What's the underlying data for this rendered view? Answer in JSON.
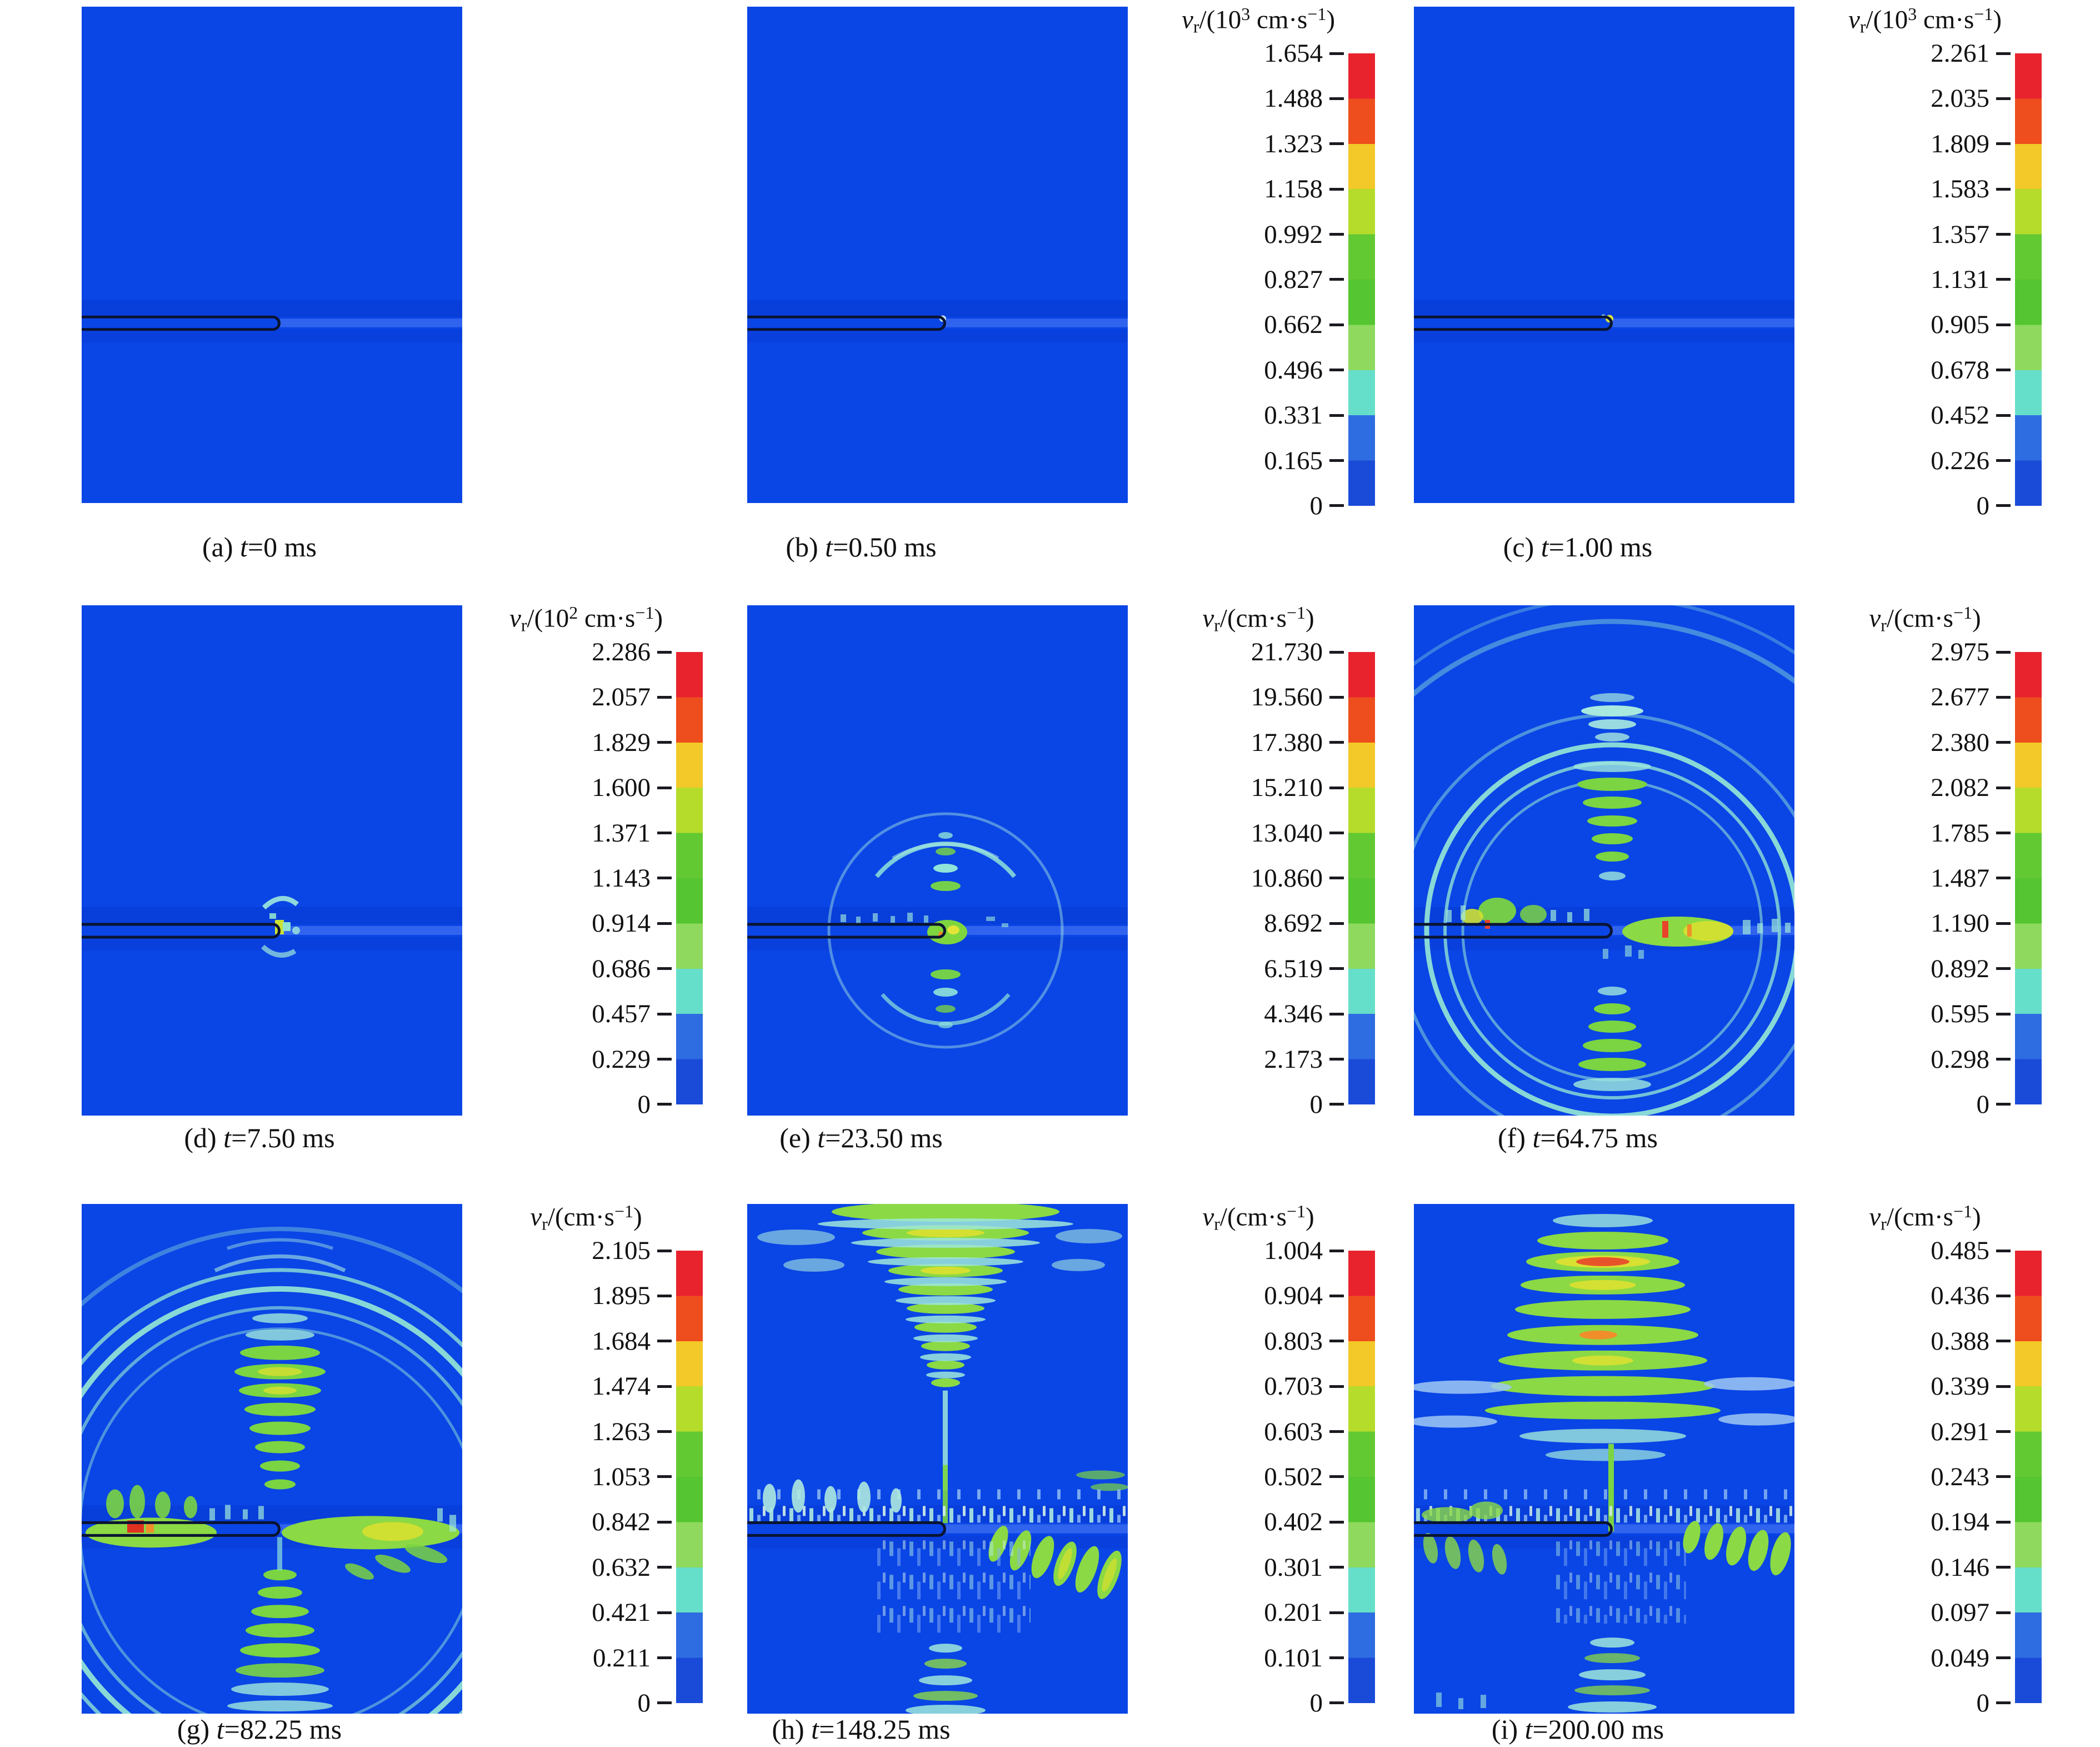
{
  "figure": {
    "background": "#ffffff",
    "field_color": "#0a45e6",
    "borehole_color": "#0a1430",
    "colorbar_band_colors": [
      "#e8232e",
      "#ee4e1d",
      "#f2c928",
      "#b5dc2b",
      "#63c933",
      "#55c531",
      "#8ed95e",
      "#66dfca",
      "#2e6ce2",
      "#1a4bd8"
    ],
    "panels": [
      {
        "id": "a",
        "caption_parts": [
          {
            "t": "(a) ",
            "s": "n"
          },
          {
            "t": "t",
            "s": "i"
          },
          {
            "t": "=0 ms",
            "s": "n"
          }
        ]
      },
      {
        "id": "b",
        "caption_parts": [
          {
            "t": "(b) ",
            "s": "n"
          },
          {
            "t": "t",
            "s": "i"
          },
          {
            "t": "=0.50 ms",
            "s": "n"
          }
        ],
        "colorbar": {
          "title_parts": [
            {
              "t": "v",
              "s": "i"
            },
            {
              "t": "r",
              "s": "sub"
            },
            {
              "t": "/(10",
              "s": "n"
            },
            {
              "t": "3",
              "s": "sup"
            },
            {
              "t": " cm·s",
              "s": "n"
            },
            {
              "t": "−1",
              "s": "sup"
            },
            {
              "t": ")",
              "s": "n"
            }
          ],
          "ticks": [
            "1.654",
            "1.488",
            "1.323",
            "1.158",
            "0.992",
            "0.827",
            "0.662",
            "0.496",
            "0.331",
            "0.165",
            "0"
          ]
        }
      },
      {
        "id": "c",
        "caption_parts": [
          {
            "t": "(c) ",
            "s": "n"
          },
          {
            "t": "t",
            "s": "i"
          },
          {
            "t": "=1.00 ms",
            "s": "n"
          }
        ],
        "colorbar": {
          "title_parts": [
            {
              "t": "v",
              "s": "i"
            },
            {
              "t": "r",
              "s": "sub"
            },
            {
              "t": "/(10",
              "s": "n"
            },
            {
              "t": "3",
              "s": "sup"
            },
            {
              "t": " cm·s",
              "s": "n"
            },
            {
              "t": "−1",
              "s": "sup"
            },
            {
              "t": ")",
              "s": "n"
            }
          ],
          "ticks": [
            "2.261",
            "2.035",
            "1.809",
            "1.583",
            "1.357",
            "1.131",
            "0.905",
            "0.678",
            "0.452",
            "0.226",
            "0"
          ]
        }
      },
      {
        "id": "d",
        "caption_parts": [
          {
            "t": "(d) ",
            "s": "n"
          },
          {
            "t": "t",
            "s": "i"
          },
          {
            "t": "=7.50 ms",
            "s": "n"
          }
        ],
        "colorbar": {
          "title_parts": [
            {
              "t": "v",
              "s": "i"
            },
            {
              "t": "r",
              "s": "sub"
            },
            {
              "t": "/(10",
              "s": "n"
            },
            {
              "t": "2",
              "s": "sup"
            },
            {
              "t": " cm·s",
              "s": "n"
            },
            {
              "t": "−1",
              "s": "sup"
            },
            {
              "t": ")",
              "s": "n"
            }
          ],
          "ticks": [
            "2.286",
            "2.057",
            "1.829",
            "1.600",
            "1.371",
            "1.143",
            "0.914",
            "0.686",
            "0.457",
            "0.229",
            "0"
          ]
        }
      },
      {
        "id": "e",
        "caption_parts": [
          {
            "t": "(e) ",
            "s": "n"
          },
          {
            "t": "t",
            "s": "i"
          },
          {
            "t": "=23.50 ms",
            "s": "n"
          }
        ],
        "colorbar": {
          "title_parts": [
            {
              "t": "v",
              "s": "i"
            },
            {
              "t": "r",
              "s": "sub"
            },
            {
              "t": "/(cm·s",
              "s": "n"
            },
            {
              "t": "−1",
              "s": "sup"
            },
            {
              "t": ")",
              "s": "n"
            }
          ],
          "ticks": [
            "21.730",
            "19.560",
            "17.380",
            "15.210",
            "13.040",
            "10.860",
            "8.692",
            "6.519",
            "4.346",
            "2.173",
            "0"
          ]
        }
      },
      {
        "id": "f",
        "caption_parts": [
          {
            "t": "(f) ",
            "s": "n"
          },
          {
            "t": "t",
            "s": "i"
          },
          {
            "t": "=64.75 ms",
            "s": "n"
          }
        ],
        "colorbar": {
          "title_parts": [
            {
              "t": "v",
              "s": "i"
            },
            {
              "t": "r",
              "s": "sub"
            },
            {
              "t": "/(cm·s",
              "s": "n"
            },
            {
              "t": "−1",
              "s": "sup"
            },
            {
              "t": ")",
              "s": "n"
            }
          ],
          "ticks": [
            "2.975",
            "2.677",
            "2.380",
            "2.082",
            "1.785",
            "1.487",
            "1.190",
            "0.892",
            "0.595",
            "0.298",
            "0"
          ]
        }
      },
      {
        "id": "g",
        "caption_parts": [
          {
            "t": "(g) ",
            "s": "n"
          },
          {
            "t": "t",
            "s": "i"
          },
          {
            "t": "=82.25 ms",
            "s": "n"
          }
        ],
        "colorbar": {
          "title_parts": [
            {
              "t": "v",
              "s": "i"
            },
            {
              "t": "r",
              "s": "sub"
            },
            {
              "t": "/(cm·s",
              "s": "n"
            },
            {
              "t": "−1",
              "s": "sup"
            },
            {
              "t": ")",
              "s": "n"
            }
          ],
          "ticks": [
            "2.105",
            "1.895",
            "1.684",
            "1.474",
            "1.263",
            "1.053",
            "0.842",
            "0.632",
            "0.421",
            "0.211",
            "0"
          ]
        }
      },
      {
        "id": "h",
        "caption_parts": [
          {
            "t": "(h) ",
            "s": "n"
          },
          {
            "t": "t",
            "s": "i"
          },
          {
            "t": "=148.25 ms",
            "s": "n"
          }
        ],
        "colorbar": {
          "title_parts": [
            {
              "t": "v",
              "s": "i"
            },
            {
              "t": "r",
              "s": "sub"
            },
            {
              "t": "/(cm·s",
              "s": "n"
            },
            {
              "t": "−1",
              "s": "sup"
            },
            {
              "t": ")",
              "s": "n"
            }
          ],
          "ticks": [
            "1.004",
            "0.904",
            "0.803",
            "0.703",
            "0.603",
            "0.502",
            "0.402",
            "0.301",
            "0.201",
            "0.101",
            "0"
          ]
        }
      },
      {
        "id": "i",
        "caption_parts": [
          {
            "t": "(i) ",
            "s": "n"
          },
          {
            "t": "t",
            "s": "i"
          },
          {
            "t": "=200.00 ms",
            "s": "n"
          }
        ],
        "colorbar": {
          "title_parts": [
            {
              "t": "v",
              "s": "i"
            },
            {
              "t": "r",
              "s": "sub"
            },
            {
              "t": "/(cm·s",
              "s": "n"
            },
            {
              "t": "−1",
              "s": "sup"
            },
            {
              "t": ")",
              "s": "n"
            }
          ],
          "ticks": [
            "0.485",
            "0.436",
            "0.388",
            "0.339",
            "0.291",
            "0.243",
            "0.194",
            "0.146",
            "0.097",
            "0.049",
            "0"
          ]
        }
      }
    ]
  },
  "chart_data": [
    {
      "type": "heatmap",
      "panel": "(a)",
      "time_label": "t=0 ms",
      "time_ms": 0,
      "variable": "vr (radial velocity)",
      "unit": "10^3 cm·s^-1",
      "colorbar_shown": false,
      "colorbar_ticks": [
        1.654,
        1.488,
        1.323,
        1.158,
        0.992,
        0.827,
        0.662,
        0.496,
        0.331,
        0.165,
        0
      ],
      "pattern": "uniform near-zero blue field; horizontal borehole from left edge to panel center"
    },
    {
      "type": "heatmap",
      "panel": "(b)",
      "time_label": "t=0.50 ms",
      "time_ms": 0.5,
      "variable": "vr (radial velocity)",
      "unit": "10^3 cm·s^-1",
      "colorbar_shown": true,
      "colorbar_ticks": [
        1.654,
        1.488,
        1.323,
        1.158,
        0.992,
        0.827,
        0.662,
        0.496,
        0.331,
        0.165,
        0
      ],
      "pattern": "tiny bright spot at borehole tip"
    },
    {
      "type": "heatmap",
      "panel": "(c)",
      "time_label": "t=1.00 ms",
      "time_ms": 1.0,
      "variable": "vr (radial velocity)",
      "unit": "10^3 cm·s^-1",
      "colorbar_shown": true,
      "colorbar_ticks": [
        2.261,
        2.035,
        1.809,
        1.583,
        1.357,
        1.131,
        0.905,
        0.678,
        0.452,
        0.226,
        0
      ],
      "pattern": "small yellow-green spot at borehole tip"
    },
    {
      "type": "heatmap",
      "panel": "(d)",
      "time_label": "t=7.50 ms",
      "time_ms": 7.5,
      "variable": "vr (radial velocity)",
      "unit": "10^2 cm·s^-1",
      "colorbar_shown": true,
      "colorbar_ticks": [
        2.286,
        2.057,
        1.829,
        1.6,
        1.371,
        1.143,
        0.914,
        0.686,
        0.457,
        0.229,
        0
      ],
      "pattern": "small cyan/green wavefront cluster around borehole tip"
    },
    {
      "type": "heatmap",
      "panel": "(e)",
      "time_label": "t=23.50 ms",
      "time_ms": 23.5,
      "variable": "vr (radial velocity)",
      "unit": "cm·s^-1",
      "colorbar_shown": true,
      "colorbar_ticks": [
        21.73,
        19.56,
        17.38,
        15.21,
        13.04,
        10.86,
        8.692,
        6.519,
        4.346,
        2.173,
        0
      ],
      "pattern": "cross-shaped ripple system with cyan arcs centered on borehole tip"
    },
    {
      "type": "heatmap",
      "panel": "(f)",
      "time_label": "t=64.75 ms",
      "time_ms": 64.75,
      "variable": "vr (radial velocity)",
      "unit": "cm·s^-1",
      "colorbar_shown": true,
      "colorbar_ticks": [
        2.975,
        2.677,
        2.38,
        2.082,
        1.785,
        1.487,
        1.19,
        0.892,
        0.595,
        0.298,
        0
      ],
      "pattern": "large circular wavefronts, vertical green lobe stacks, strong green/red band right of tip"
    },
    {
      "type": "heatmap",
      "panel": "(g)",
      "time_label": "t=82.25 ms",
      "time_ms": 82.25,
      "variable": "vr (radial velocity)",
      "unit": "cm·s^-1",
      "colorbar_shown": true,
      "colorbar_ticks": [
        2.105,
        1.895,
        1.684,
        1.474,
        1.263,
        1.053,
        0.842,
        0.632,
        0.421,
        0.211,
        0
      ],
      "pattern": "expanded ring nearly filling panel, green cross lobes, red spot on borehole at left, green band to right edge"
    },
    {
      "type": "heatmap",
      "panel": "(h)",
      "time_label": "t=148.25 ms",
      "time_ms": 148.25,
      "variable": "vr (radial velocity)",
      "unit": "cm·s^-1",
      "colorbar_shown": true,
      "colorbar_ticks": [
        1.004,
        0.904,
        0.803,
        0.703,
        0.603,
        0.502,
        0.402,
        0.301,
        0.201,
        0.101,
        0
      ],
      "pattern": "ripple chandelier at top center, spiky band along borehole, diagonal wave trains lower right"
    },
    {
      "type": "heatmap",
      "panel": "(i)",
      "time_label": "t=200.00 ms",
      "time_ms": 200.0,
      "variable": "vr (radial velocity)",
      "unit": "cm·s^-1",
      "colorbar_shown": true,
      "colorbar_ticks": [
        0.485,
        0.436,
        0.388,
        0.339,
        0.291,
        0.243,
        0.194,
        0.146,
        0.097,
        0.049,
        0
      ],
      "pattern": "broad stacked ripples with orange/red cores at top, vertical stem to borehole, wave trains along borehole level"
    }
  ]
}
